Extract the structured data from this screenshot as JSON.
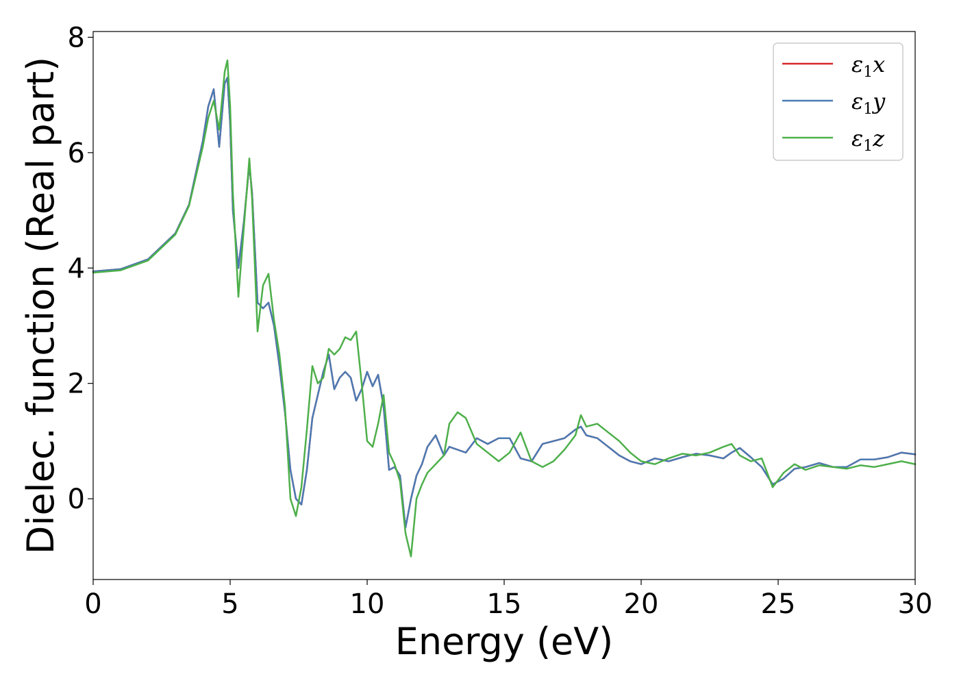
{
  "chart_data": {
    "type": "line",
    "xlabel": "Energy (eV)",
    "ylabel": "Dielec. function (Real part)",
    "xlim": [
      0,
      30
    ],
    "ylim": [
      -1.4,
      8.1
    ],
    "xticks": [
      "0",
      "5",
      "10",
      "15",
      "20",
      "25",
      "30"
    ],
    "yticks": [
      "0",
      "2",
      "4",
      "6",
      "8"
    ],
    "grid": false,
    "legend_position": "top-right",
    "series": [
      {
        "name": "ε1x",
        "legend_parts": {
          "base": "ε",
          "sub": "1",
          "comp": "x"
        },
        "color": "#d62728",
        "x": [
          0,
          1,
          2,
          3,
          3.5,
          4,
          4.2,
          4.4,
          4.6,
          4.8,
          4.9,
          5.0,
          5.1,
          5.3,
          5.5,
          5.7,
          5.8,
          6.0,
          6.2,
          6.4,
          6.6,
          6.8,
          7.0,
          7.2,
          7.4,
          7.6,
          7.8,
          8.0,
          8.2,
          8.4,
          8.6,
          8.8,
          9.0,
          9.2,
          9.4,
          9.6,
          9.8,
          10.0,
          10.2,
          10.4,
          10.6,
          10.8,
          11.0,
          11.2,
          11.4,
          11.6,
          11.8,
          12.0,
          12.2,
          12.5,
          12.8,
          13.0,
          13.3,
          13.6,
          14.0,
          14.4,
          14.8,
          15.2,
          15.6,
          16.0,
          16.4,
          16.8,
          17.2,
          17.6,
          17.8,
          18.0,
          18.4,
          18.8,
          19.2,
          19.6,
          20.0,
          20.5,
          21.0,
          21.5,
          22.0,
          22.5,
          23.0,
          23.3,
          23.6,
          24.0,
          24.4,
          24.8,
          25.2,
          25.6,
          26.0,
          26.5,
          27.0,
          27.5,
          28.0,
          28.5,
          29.0,
          29.5,
          30.0
        ],
        "values": [
          3.94,
          3.98,
          4.15,
          4.6,
          5.1,
          6.2,
          6.8,
          7.1,
          6.1,
          7.2,
          7.3,
          6.5,
          5.0,
          4.0,
          4.8,
          5.8,
          5.3,
          3.4,
          3.3,
          3.4,
          3.0,
          2.3,
          1.5,
          0.5,
          0.0,
          -0.1,
          0.5,
          1.4,
          1.8,
          2.2,
          2.5,
          1.9,
          2.1,
          2.2,
          2.1,
          1.7,
          1.9,
          2.2,
          1.95,
          2.15,
          1.6,
          0.5,
          0.55,
          0.4,
          -0.5,
          0.0,
          0.4,
          0.6,
          0.9,
          1.1,
          0.75,
          0.9,
          0.85,
          0.8,
          1.05,
          0.95,
          1.05,
          1.05,
          0.7,
          0.65,
          0.95,
          1.0,
          1.05,
          1.2,
          1.25,
          1.1,
          1.05,
          0.9,
          0.75,
          0.65,
          0.6,
          0.7,
          0.65,
          0.72,
          0.78,
          0.75,
          0.7,
          0.8,
          0.88,
          0.72,
          0.55,
          0.25,
          0.35,
          0.52,
          0.55,
          0.62,
          0.55,
          0.55,
          0.68,
          0.68,
          0.72,
          0.8,
          0.77
        ]
      },
      {
        "name": "ε1y",
        "legend_parts": {
          "base": "ε",
          "sub": "1",
          "comp": "y"
        },
        "color": "#4a7ab3",
        "x": [
          0,
          1,
          2,
          3,
          3.5,
          4,
          4.2,
          4.4,
          4.6,
          4.8,
          4.9,
          5.0,
          5.1,
          5.3,
          5.5,
          5.7,
          5.8,
          6.0,
          6.2,
          6.4,
          6.6,
          6.8,
          7.0,
          7.2,
          7.4,
          7.6,
          7.8,
          8.0,
          8.2,
          8.4,
          8.6,
          8.8,
          9.0,
          9.2,
          9.4,
          9.6,
          9.8,
          10.0,
          10.2,
          10.4,
          10.6,
          10.8,
          11.0,
          11.2,
          11.4,
          11.6,
          11.8,
          12.0,
          12.2,
          12.5,
          12.8,
          13.0,
          13.3,
          13.6,
          14.0,
          14.4,
          14.8,
          15.2,
          15.6,
          16.0,
          16.4,
          16.8,
          17.2,
          17.6,
          17.8,
          18.0,
          18.4,
          18.8,
          19.2,
          19.6,
          20.0,
          20.5,
          21.0,
          21.5,
          22.0,
          22.5,
          23.0,
          23.3,
          23.6,
          24.0,
          24.4,
          24.8,
          25.2,
          25.6,
          26.0,
          26.5,
          27.0,
          27.5,
          28.0,
          28.5,
          29.0,
          29.5,
          30.0
        ],
        "values": [
          3.94,
          3.98,
          4.15,
          4.6,
          5.1,
          6.2,
          6.8,
          7.1,
          6.1,
          7.2,
          7.3,
          6.5,
          5.0,
          4.0,
          4.8,
          5.8,
          5.3,
          3.4,
          3.3,
          3.4,
          3.0,
          2.3,
          1.5,
          0.5,
          0.0,
          -0.1,
          0.5,
          1.4,
          1.8,
          2.2,
          2.5,
          1.9,
          2.1,
          2.2,
          2.1,
          1.7,
          1.9,
          2.2,
          1.95,
          2.15,
          1.6,
          0.5,
          0.55,
          0.4,
          -0.5,
          0.0,
          0.4,
          0.6,
          0.9,
          1.1,
          0.75,
          0.9,
          0.85,
          0.8,
          1.05,
          0.95,
          1.05,
          1.05,
          0.7,
          0.65,
          0.95,
          1.0,
          1.05,
          1.2,
          1.25,
          1.1,
          1.05,
          0.9,
          0.75,
          0.65,
          0.6,
          0.7,
          0.65,
          0.72,
          0.78,
          0.75,
          0.7,
          0.8,
          0.88,
          0.72,
          0.55,
          0.25,
          0.35,
          0.52,
          0.55,
          0.62,
          0.55,
          0.55,
          0.68,
          0.68,
          0.72,
          0.8,
          0.77
        ]
      },
      {
        "name": "ε1z",
        "legend_parts": {
          "base": "ε",
          "sub": "1",
          "comp": "z"
        },
        "color": "#4daf4a",
        "x": [
          0,
          1,
          2,
          3,
          3.5,
          4,
          4.2,
          4.4,
          4.6,
          4.8,
          4.9,
          5.0,
          5.1,
          5.3,
          5.5,
          5.7,
          5.8,
          6.0,
          6.2,
          6.4,
          6.6,
          6.8,
          7.0,
          7.2,
          7.4,
          7.6,
          7.8,
          8.0,
          8.2,
          8.4,
          8.6,
          8.8,
          9.0,
          9.2,
          9.4,
          9.6,
          9.8,
          10.0,
          10.2,
          10.4,
          10.6,
          10.8,
          11.0,
          11.2,
          11.4,
          11.6,
          11.8,
          12.0,
          12.2,
          12.5,
          12.8,
          13.0,
          13.3,
          13.6,
          14.0,
          14.4,
          14.8,
          15.2,
          15.6,
          16.0,
          16.4,
          16.8,
          17.2,
          17.6,
          17.8,
          18.0,
          18.4,
          18.8,
          19.2,
          19.6,
          20.0,
          20.5,
          21.0,
          21.5,
          22.0,
          22.5,
          23.0,
          23.3,
          23.6,
          24.0,
          24.4,
          24.8,
          25.2,
          25.6,
          26.0,
          26.5,
          27.0,
          27.5,
          28.0,
          28.5,
          29.0,
          29.5,
          30.0
        ],
        "values": [
          3.92,
          3.96,
          4.13,
          4.58,
          5.08,
          6.1,
          6.6,
          6.9,
          6.4,
          7.4,
          7.6,
          6.8,
          5.3,
          3.5,
          4.7,
          5.9,
          5.2,
          2.9,
          3.7,
          3.9,
          3.1,
          2.5,
          1.6,
          0.0,
          -0.3,
          0.2,
          1.2,
          2.3,
          2.0,
          2.1,
          2.6,
          2.5,
          2.6,
          2.8,
          2.75,
          2.9,
          2.0,
          1.0,
          0.9,
          1.3,
          1.8,
          0.8,
          0.6,
          0.3,
          -0.6,
          -1.0,
          0.0,
          0.25,
          0.45,
          0.6,
          0.75,
          1.3,
          1.5,
          1.4,
          0.95,
          0.8,
          0.65,
          0.8,
          1.15,
          0.65,
          0.55,
          0.65,
          0.85,
          1.1,
          1.45,
          1.25,
          1.3,
          1.15,
          1.0,
          0.8,
          0.65,
          0.6,
          0.7,
          0.78,
          0.75,
          0.8,
          0.9,
          0.95,
          0.75,
          0.65,
          0.7,
          0.2,
          0.45,
          0.6,
          0.5,
          0.58,
          0.55,
          0.52,
          0.58,
          0.55,
          0.6,
          0.65,
          0.6
        ]
      }
    ]
  }
}
